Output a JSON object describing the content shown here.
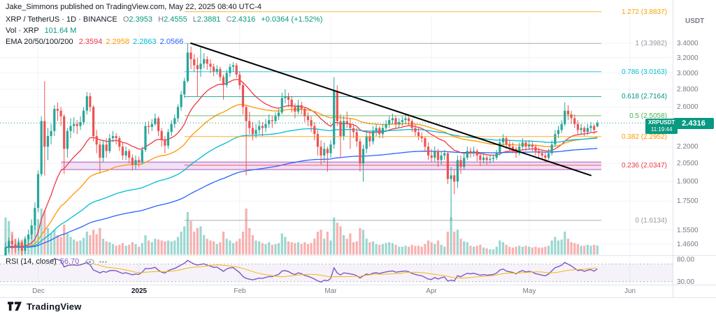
{
  "header": {
    "attribution": "Jake_Simmons published on TradingView.com, May 22, 2025 08:40 UTC-4"
  },
  "legend": {
    "symbol_title": "XRP / TetherUS · 1D · BINANCE",
    "ohlc": {
      "o_label": "O",
      "o": "2.3953",
      "h_label": "H",
      "h": "2.4555",
      "l_label": "L",
      "l": "2.3881",
      "c_label": "C",
      "c": "2.4316",
      "change": "+0.0364 (+1.52%)"
    },
    "volume": {
      "label": "Vol · XRP",
      "value": "101.64 M"
    },
    "ema": {
      "label": "EMA 20/50/100/200",
      "values": [
        "2.3594",
        "2.2958",
        "2.2863",
        "2.0566"
      ],
      "colors": [
        "#f23645",
        "#ff9800",
        "#00bcd4",
        "#2962ff"
      ]
    }
  },
  "price_scale": {
    "title": "USDT",
    "ticks": [
      "3.4000",
      "3.2000",
      "3.0000",
      "2.8000",
      "2.6000",
      "2.2000",
      "2.0500",
      "1.9000",
      "1.7500",
      "1.5500",
      "1.4600"
    ],
    "last_price": "2.4316",
    "countdown": "11:19:44",
    "symbol_badge": "XRPUSDT",
    "badge_color": "#089981"
  },
  "rsi_pane": {
    "label": "RSI (14, close)",
    "value": "56.70",
    "upper_tick": "80.00",
    "lower_tick": "30.00",
    "line_color": "#7e57c2",
    "ma_color": "#f0b90b",
    "bands": [
      70,
      30
    ]
  },
  "time_axis": {
    "labels": [
      {
        "label": "Dec",
        "index": 10,
        "strong": false
      },
      {
        "label": "2025",
        "index": 41,
        "strong": true
      },
      {
        "label": "Feb",
        "index": 72,
        "strong": false
      },
      {
        "label": "Mar",
        "index": 100,
        "strong": false
      },
      {
        "label": "Apr",
        "index": 131,
        "strong": false
      },
      {
        "label": "May",
        "index": 161,
        "strong": false
      },
      {
        "label": "Jun",
        "index": 192,
        "strong": false
      }
    ]
  },
  "footer": {
    "brand": "TradingView"
  },
  "chart_data": {
    "type": "candlestick",
    "symbol": "XRPUSDT",
    "interval": "1D",
    "exchange": "BINANCE",
    "price_axis": {
      "scale": "log",
      "unit": "USDT",
      "visible_range": [
        1.4,
        3.52
      ]
    },
    "up_color": "#26a69a",
    "down_color": "#ef5350",
    "last_price": 2.4316,
    "candles": [
      [
        1.38,
        1.47,
        1.36,
        1.44,
        420
      ],
      [
        1.44,
        1.5,
        1.41,
        1.48,
        380
      ],
      [
        1.48,
        1.52,
        1.43,
        1.46,
        260
      ],
      [
        1.46,
        1.49,
        1.41,
        1.44,
        180
      ],
      [
        1.44,
        1.5,
        1.42,
        1.47,
        160
      ],
      [
        1.47,
        1.48,
        1.38,
        1.42,
        170
      ],
      [
        1.42,
        1.51,
        1.4,
        1.49,
        190
      ],
      [
        1.49,
        1.55,
        1.46,
        1.52,
        210
      ],
      [
        1.52,
        1.62,
        1.49,
        1.58,
        260
      ],
      [
        1.58,
        1.74,
        1.55,
        1.7,
        330
      ],
      [
        1.7,
        1.99,
        1.67,
        1.96,
        400
      ],
      [
        1.96,
        2.5,
        1.94,
        2.45,
        520
      ],
      [
        2.45,
        2.9,
        1.95,
        2.2,
        500
      ],
      [
        2.2,
        2.38,
        2.08,
        2.3,
        300
      ],
      [
        2.3,
        2.42,
        2.22,
        2.35,
        240
      ],
      [
        2.35,
        2.62,
        2.3,
        2.58,
        280
      ],
      [
        2.58,
        2.65,
        2.45,
        2.56,
        220
      ],
      [
        2.56,
        2.6,
        2.4,
        2.5,
        200
      ],
      [
        2.5,
        2.52,
        1.96,
        2.18,
        340
      ],
      [
        2.18,
        2.38,
        2.1,
        2.35,
        240
      ],
      [
        2.35,
        2.48,
        2.28,
        2.4,
        200
      ],
      [
        2.4,
        2.49,
        2.33,
        2.42,
        170
      ],
      [
        2.42,
        2.46,
        2.32,
        2.4,
        150
      ],
      [
        2.4,
        2.5,
        2.36,
        2.44,
        160
      ],
      [
        2.44,
        2.6,
        2.41,
        2.56,
        190
      ],
      [
        2.56,
        2.77,
        2.52,
        2.72,
        260
      ],
      [
        2.72,
        2.76,
        2.55,
        2.6,
        220
      ],
      [
        2.6,
        2.62,
        2.25,
        2.3,
        280
      ],
      [
        2.3,
        2.36,
        2.14,
        2.22,
        230
      ],
      [
        2.22,
        2.25,
        1.97,
        2.1,
        300
      ],
      [
        2.1,
        2.26,
        2.06,
        2.22,
        180
      ],
      [
        2.22,
        2.28,
        2.1,
        2.16,
        150
      ],
      [
        2.16,
        2.32,
        2.14,
        2.28,
        140
      ],
      [
        2.28,
        2.35,
        2.24,
        2.3,
        120
      ],
      [
        2.3,
        2.33,
        2.22,
        2.28,
        100
      ],
      [
        2.28,
        2.3,
        2.16,
        2.2,
        110
      ],
      [
        2.2,
        2.24,
        2.08,
        2.12,
        130
      ],
      [
        2.12,
        2.2,
        2.08,
        2.16,
        100
      ],
      [
        2.16,
        2.18,
        2.05,
        2.1,
        110
      ],
      [
        2.1,
        2.13,
        1.99,
        2.04,
        140
      ],
      [
        2.04,
        2.12,
        2.0,
        2.08,
        120
      ],
      [
        2.08,
        2.11,
        2.02,
        2.06,
        90
      ],
      [
        2.06,
        2.2,
        2.04,
        2.17,
        130
      ],
      [
        2.17,
        2.44,
        2.15,
        2.4,
        220
      ],
      [
        2.4,
        2.45,
        2.32,
        2.39,
        160
      ],
      [
        2.39,
        2.47,
        2.35,
        2.42,
        140
      ],
      [
        2.42,
        2.53,
        2.4,
        2.48,
        180
      ],
      [
        2.48,
        2.5,
        2.3,
        2.35,
        170
      ],
      [
        2.35,
        2.38,
        2.2,
        2.26,
        160
      ],
      [
        2.26,
        2.3,
        2.14,
        2.21,
        150
      ],
      [
        2.21,
        2.37,
        2.18,
        2.34,
        160
      ],
      [
        2.34,
        2.46,
        2.3,
        2.42,
        150
      ],
      [
        2.42,
        2.52,
        2.38,
        2.48,
        160
      ],
      [
        2.48,
        2.63,
        2.44,
        2.6,
        200
      ],
      [
        2.6,
        2.78,
        2.56,
        2.74,
        260
      ],
      [
        2.74,
        2.94,
        2.7,
        2.9,
        320
      ],
      [
        2.9,
        3.398,
        2.88,
        3.27,
        480
      ],
      [
        3.27,
        3.35,
        3.05,
        3.18,
        380
      ],
      [
        3.18,
        3.25,
        3.02,
        3.1,
        260
      ],
      [
        3.1,
        3.2,
        2.72,
        3.05,
        300
      ],
      [
        3.05,
        3.34,
        2.95,
        3.12,
        320
      ],
      [
        3.12,
        3.26,
        3.06,
        3.18,
        220
      ],
      [
        3.18,
        3.22,
        3.04,
        3.12,
        180
      ],
      [
        3.12,
        3.18,
        3.0,
        3.08,
        160
      ],
      [
        3.08,
        3.12,
        2.96,
        3.02,
        150
      ],
      [
        3.02,
        3.1,
        2.98,
        3.05,
        120
      ],
      [
        3.05,
        3.08,
        2.9,
        2.95,
        140
      ],
      [
        2.95,
        2.98,
        2.68,
        2.85,
        260
      ],
      [
        2.85,
        3.04,
        2.82,
        3.0,
        180
      ],
      [
        3.0,
        3.12,
        2.95,
        3.08,
        160
      ],
      [
        3.08,
        3.14,
        3.02,
        3.1,
        130
      ],
      [
        3.1,
        3.13,
        2.94,
        2.98,
        150
      ],
      [
        2.98,
        3.02,
        2.8,
        2.85,
        180
      ],
      [
        2.85,
        2.88,
        2.52,
        2.6,
        260
      ],
      [
        2.6,
        2.62,
        1.95,
        2.45,
        520
      ],
      [
        2.45,
        2.55,
        2.32,
        2.38,
        300
      ],
      [
        2.38,
        2.44,
        2.26,
        2.32,
        220
      ],
      [
        2.32,
        2.42,
        2.28,
        2.36,
        160
      ],
      [
        2.36,
        2.46,
        2.32,
        2.4,
        150
      ],
      [
        2.4,
        2.44,
        2.3,
        2.38,
        130
      ],
      [
        2.38,
        2.47,
        2.34,
        2.42,
        120
      ],
      [
        2.42,
        2.52,
        2.38,
        2.46,
        140
      ],
      [
        2.46,
        2.5,
        2.38,
        2.45,
        110
      ],
      [
        2.45,
        2.54,
        2.42,
        2.5,
        120
      ],
      [
        2.5,
        2.58,
        2.46,
        2.54,
        130
      ],
      [
        2.54,
        2.76,
        2.52,
        2.7,
        240
      ],
      [
        2.7,
        2.8,
        2.64,
        2.72,
        200
      ],
      [
        2.72,
        2.76,
        2.6,
        2.68,
        150
      ],
      [
        2.68,
        2.72,
        2.54,
        2.6,
        140
      ],
      [
        2.6,
        2.64,
        2.48,
        2.55,
        130
      ],
      [
        2.55,
        2.68,
        2.52,
        2.62,
        140
      ],
      [
        2.62,
        2.66,
        2.52,
        2.58,
        120
      ],
      [
        2.58,
        2.6,
        2.44,
        2.5,
        140
      ],
      [
        2.5,
        2.54,
        2.4,
        2.46,
        120
      ],
      [
        2.46,
        2.5,
        2.34,
        2.4,
        130
      ],
      [
        2.4,
        2.44,
        2.26,
        2.32,
        180
      ],
      [
        2.32,
        2.36,
        2.12,
        2.2,
        260
      ],
      [
        2.2,
        2.26,
        2.04,
        2.12,
        280
      ],
      [
        2.12,
        2.24,
        2.06,
        2.18,
        180
      ],
      [
        2.18,
        2.2,
        1.98,
        2.14,
        260
      ],
      [
        2.14,
        2.26,
        2.1,
        2.22,
        160
      ],
      [
        2.22,
        2.95,
        2.18,
        2.78,
        420
      ],
      [
        2.78,
        2.85,
        2.4,
        2.45,
        360
      ],
      [
        2.45,
        2.52,
        2.1,
        2.3,
        320
      ],
      [
        2.3,
        2.5,
        2.26,
        2.45,
        220
      ],
      [
        2.45,
        2.55,
        2.38,
        2.42,
        180
      ],
      [
        2.42,
        2.48,
        2.18,
        2.38,
        240
      ],
      [
        2.38,
        2.42,
        2.28,
        2.34,
        140
      ],
      [
        2.34,
        2.38,
        2.2,
        2.25,
        150
      ],
      [
        2.25,
        2.28,
        1.98,
        2.05,
        300
      ],
      [
        2.05,
        2.22,
        1.9,
        2.18,
        280
      ],
      [
        2.18,
        2.34,
        2.14,
        2.3,
        180
      ],
      [
        2.3,
        2.35,
        2.2,
        2.25,
        140
      ],
      [
        2.25,
        2.4,
        2.22,
        2.35,
        150
      ],
      [
        2.35,
        2.42,
        2.3,
        2.38,
        120
      ],
      [
        2.38,
        2.4,
        2.28,
        2.32,
        110
      ],
      [
        2.32,
        2.42,
        2.28,
        2.38,
        120
      ],
      [
        2.38,
        2.46,
        2.34,
        2.42,
        130
      ],
      [
        2.42,
        2.5,
        2.38,
        2.46,
        140
      ],
      [
        2.46,
        2.53,
        2.42,
        2.48,
        130
      ],
      [
        2.48,
        2.5,
        2.38,
        2.42,
        110
      ],
      [
        2.42,
        2.48,
        2.38,
        2.44,
        90
      ],
      [
        2.44,
        2.5,
        2.4,
        2.46,
        90
      ],
      [
        2.46,
        2.52,
        2.42,
        2.48,
        100
      ],
      [
        2.48,
        2.5,
        2.4,
        2.45,
        90
      ],
      [
        2.45,
        2.47,
        2.34,
        2.38,
        110
      ],
      [
        2.38,
        2.42,
        2.3,
        2.34,
        100
      ],
      [
        2.34,
        2.38,
        2.26,
        2.3,
        100
      ],
      [
        2.3,
        2.34,
        2.24,
        2.28,
        90
      ],
      [
        2.28,
        2.3,
        2.16,
        2.2,
        120
      ],
      [
        2.2,
        2.24,
        2.08,
        2.12,
        160
      ],
      [
        2.12,
        2.18,
        2.06,
        2.1,
        140
      ],
      [
        2.1,
        2.2,
        2.06,
        2.16,
        120
      ],
      [
        2.16,
        2.18,
        2.02,
        2.08,
        160
      ],
      [
        2.08,
        2.16,
        2.04,
        2.12,
        110
      ],
      [
        2.12,
        2.17,
        2.08,
        2.14,
        90
      ],
      [
        2.14,
        2.15,
        1.88,
        1.92,
        260
      ],
      [
        1.92,
        2.02,
        1.6134,
        1.95,
        420
      ],
      [
        1.95,
        2.0,
        1.8,
        1.9,
        260
      ],
      [
        1.9,
        2.12,
        1.85,
        2.08,
        280
      ],
      [
        2.08,
        2.12,
        1.96,
        2.02,
        180
      ],
      [
        2.02,
        2.14,
        2.0,
        2.1,
        150
      ],
      [
        2.1,
        2.2,
        2.08,
        2.16,
        140
      ],
      [
        2.16,
        2.19,
        2.1,
        2.14,
        100
      ],
      [
        2.14,
        2.2,
        2.11,
        2.16,
        90
      ],
      [
        2.16,
        2.18,
        2.07,
        2.12,
        100
      ],
      [
        2.12,
        2.15,
        2.03,
        2.08,
        110
      ],
      [
        2.08,
        2.14,
        2.05,
        2.1,
        80
      ],
      [
        2.1,
        2.12,
        2.04,
        2.08,
        70
      ],
      [
        2.08,
        2.12,
        2.05,
        2.09,
        60
      ],
      [
        2.09,
        2.13,
        2.06,
        2.1,
        60
      ],
      [
        2.1,
        2.17,
        2.08,
        2.14,
        90
      ],
      [
        2.14,
        2.28,
        2.12,
        2.24,
        160
      ],
      [
        2.24,
        2.32,
        2.2,
        2.28,
        140
      ],
      [
        2.28,
        2.3,
        2.18,
        2.22,
        110
      ],
      [
        2.22,
        2.26,
        2.16,
        2.2,
        90
      ],
      [
        2.2,
        2.24,
        2.14,
        2.18,
        80
      ],
      [
        2.18,
        2.2,
        2.1,
        2.14,
        90
      ],
      [
        2.14,
        2.24,
        2.12,
        2.2,
        100
      ],
      [
        2.2,
        2.28,
        2.17,
        2.24,
        90
      ],
      [
        2.24,
        2.26,
        2.16,
        2.2,
        100
      ],
      [
        2.2,
        2.26,
        2.17,
        2.22,
        90
      ],
      [
        2.22,
        2.25,
        2.16,
        2.2,
        80
      ],
      [
        2.2,
        2.22,
        2.12,
        2.16,
        90
      ],
      [
        2.16,
        2.19,
        2.1,
        2.14,
        80
      ],
      [
        2.14,
        2.17,
        2.08,
        2.12,
        80
      ],
      [
        2.12,
        2.15,
        2.06,
        2.1,
        90
      ],
      [
        2.1,
        2.18,
        2.08,
        2.14,
        100
      ],
      [
        2.14,
        2.26,
        2.12,
        2.22,
        160
      ],
      [
        2.22,
        2.36,
        2.2,
        2.32,
        200
      ],
      [
        2.32,
        2.4,
        2.28,
        2.36,
        160
      ],
      [
        2.36,
        2.46,
        2.33,
        2.42,
        170
      ],
      [
        2.42,
        2.65,
        2.4,
        2.56,
        260
      ],
      [
        2.56,
        2.62,
        2.46,
        2.52,
        180
      ],
      [
        2.52,
        2.56,
        2.42,
        2.48,
        140
      ],
      [
        2.48,
        2.52,
        2.38,
        2.42,
        130
      ],
      [
        2.42,
        2.46,
        2.32,
        2.36,
        120
      ],
      [
        2.36,
        2.42,
        2.32,
        2.38,
        100
      ],
      [
        2.38,
        2.4,
        2.3,
        2.34,
        100
      ],
      [
        2.34,
        2.42,
        2.31,
        2.38,
        110
      ],
      [
        2.38,
        2.44,
        2.34,
        2.4,
        100
      ],
      [
        2.4,
        2.42,
        2.32,
        2.36,
        110
      ],
      [
        2.3953,
        2.4555,
        2.3881,
        2.4316,
        101.64
      ]
    ],
    "emas": [
      {
        "period": 20,
        "color": "#f23645"
      },
      {
        "period": 50,
        "color": "#ff9800"
      },
      {
        "period": 100,
        "color": "#00bcd4"
      },
      {
        "period": 200,
        "color": "#2962ff"
      }
    ],
    "fib_retracement": {
      "from_index": 55,
      "levels": [
        {
          "label": "1.272 (3.8837)",
          "value": 3.8837,
          "color": "#f0a500"
        },
        {
          "label": "1 (3.3982)",
          "value": 3.3982,
          "color": "#9598a1"
        },
        {
          "label": "0.786 (3.0163)",
          "value": 3.0163,
          "color": "#00bcd4"
        },
        {
          "label": "0.618 (2.7164)",
          "value": 2.7164,
          "color": "#009688"
        },
        {
          "label": "0.5 (2.5058)",
          "value": 2.5058,
          "color": "#4caf50"
        },
        {
          "label": "0.382 (2.2952)",
          "value": 2.2952,
          "color": "#ff9800"
        },
        {
          "label": "0.236 (2.0347)",
          "value": 2.0347,
          "color": "#f23645"
        },
        {
          "label": "0 (1.6134)",
          "value": 1.6134,
          "color": "#9598a1"
        }
      ]
    },
    "trendline": {
      "from_index": 57,
      "from_price": 3.4,
      "to_index": 180,
      "to_price": 1.95,
      "color": "#000000"
    },
    "support_zone": {
      "from_index": 17,
      "top": 2.062,
      "bottom": 1.998,
      "color": "#9c27b0"
    }
  }
}
